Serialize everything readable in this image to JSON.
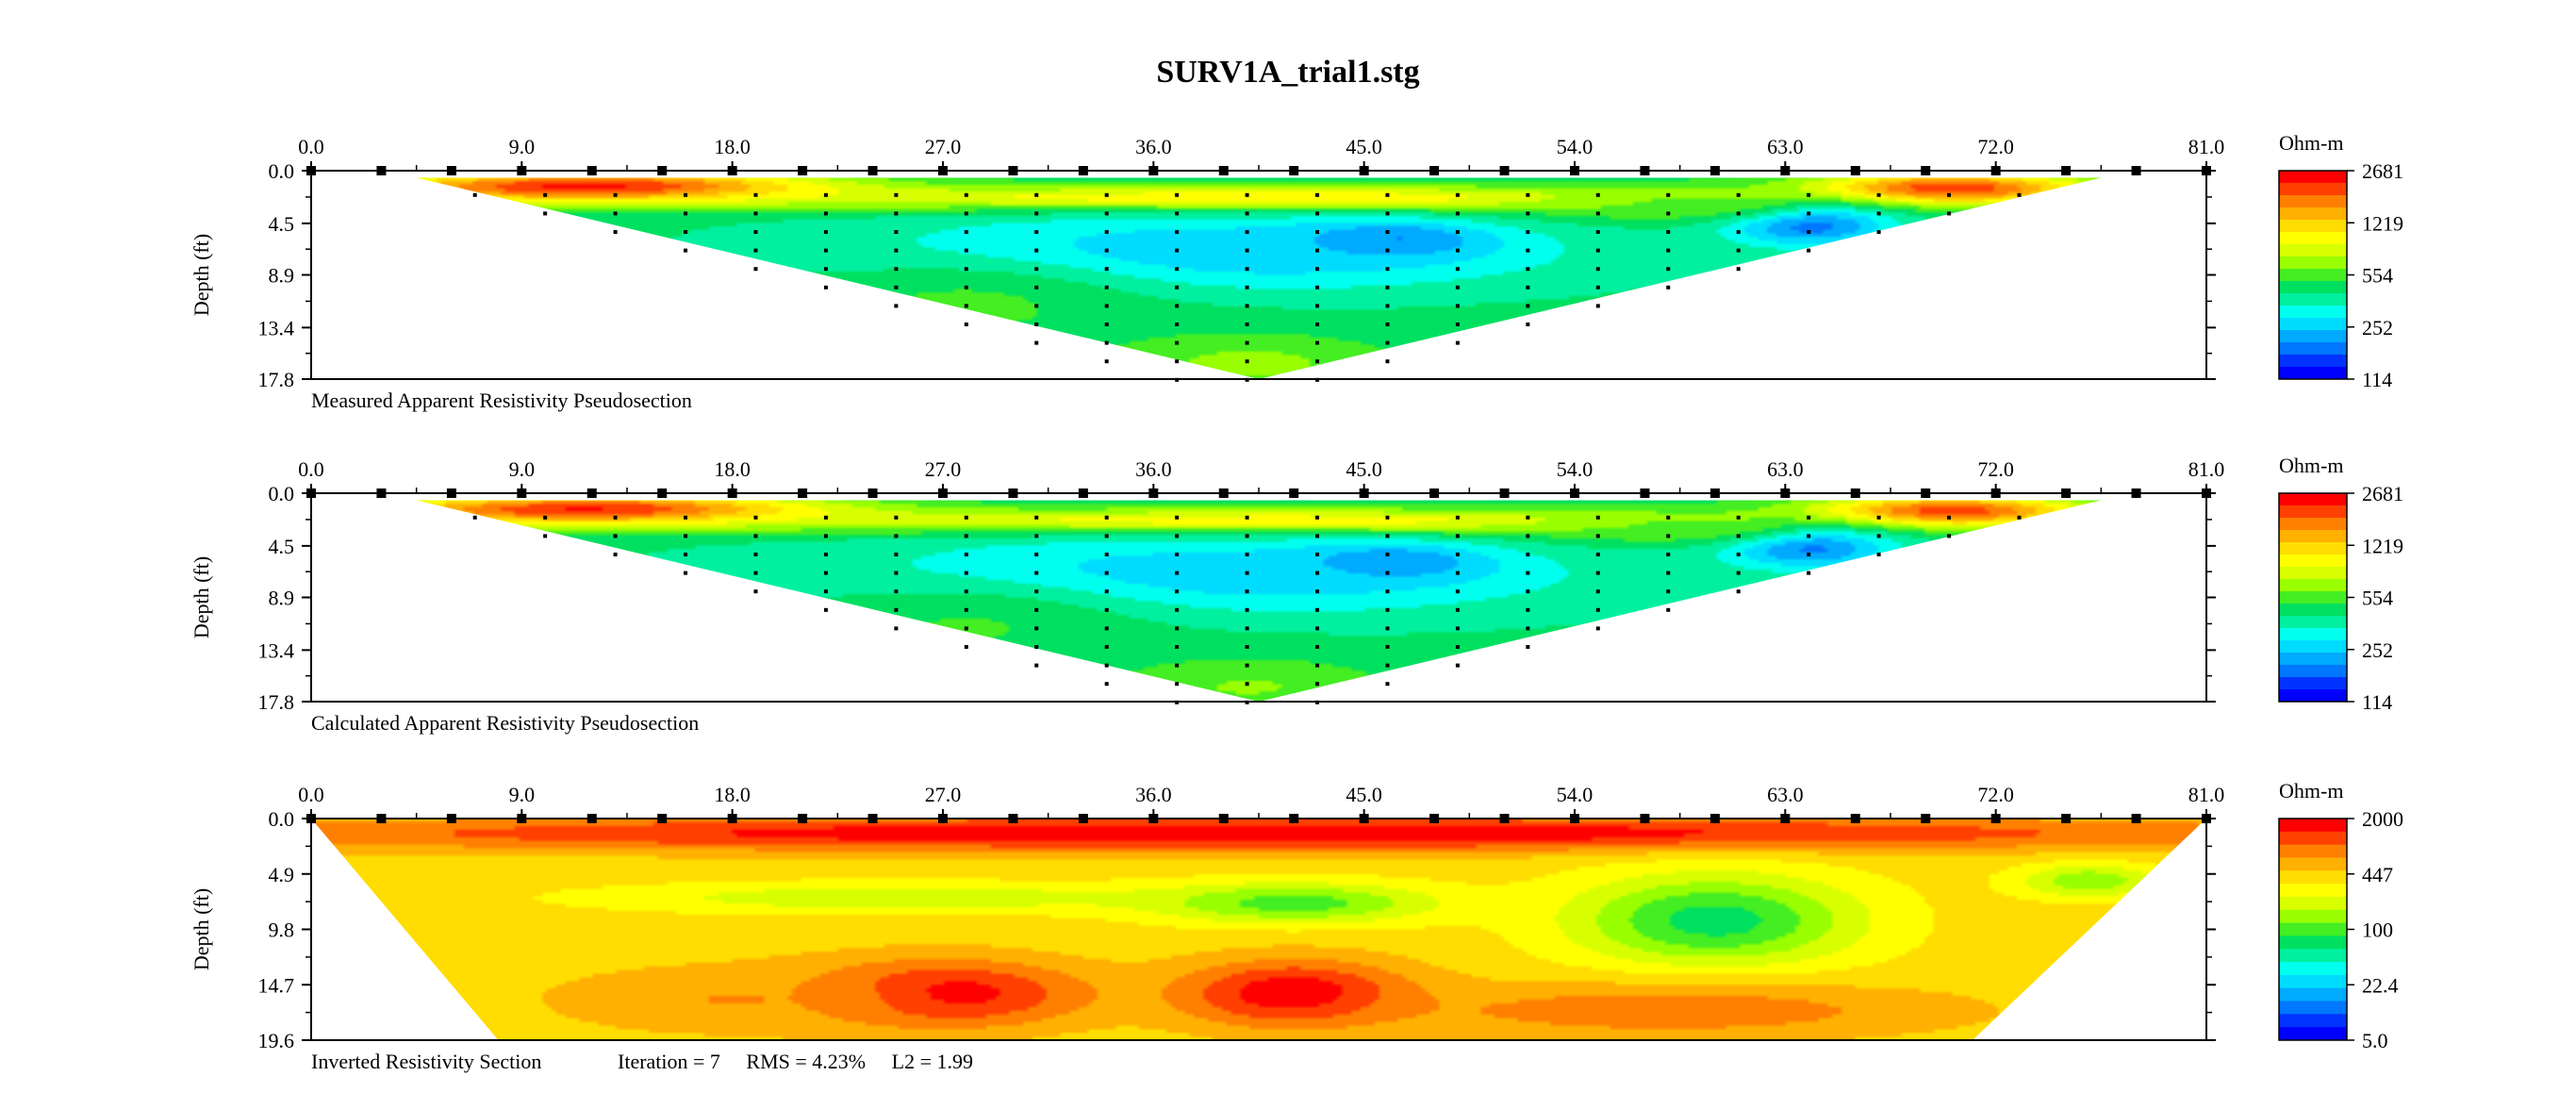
{
  "figure": {
    "title": "SURV1A_trial1.stg"
  },
  "colors": {
    "scale": [
      "#0000ff",
      "#0033ff",
      "#0077ff",
      "#00aaff",
      "#00dcff",
      "#00ffee",
      "#00f0a0",
      "#00e060",
      "#44ee22",
      "#99ff00",
      "#d8ff00",
      "#ffff00",
      "#ffdd00",
      "#ffb000",
      "#ff8000",
      "#ff4000",
      "#ff0000"
    ]
  },
  "chart_data": [
    {
      "type": "heatmap",
      "id": "measured",
      "caption": "Measured Apparent Resistivity Pseudosection",
      "ylabel": "Depth (ft)",
      "xlim": [
        0,
        81
      ],
      "ylim": [
        0,
        17.8
      ],
      "x_ticks": [
        "0.0",
        "9.0",
        "18.0",
        "27.0",
        "36.0",
        "45.0",
        "54.0",
        "63.0",
        "72.0",
        "81.0"
      ],
      "y_ticks": [
        "0.0",
        "4.5",
        "8.9",
        "13.4",
        "17.8"
      ],
      "legend_unit": "Ohm-m",
      "legend_ticks": [
        "2681",
        "1219",
        "554",
        "252",
        "114"
      ],
      "legend_range": [
        114,
        2681
      ],
      "electrodes_x": [
        0,
        3,
        6,
        9,
        12,
        15,
        18,
        21,
        24,
        27,
        30,
        33,
        36,
        39,
        42,
        45,
        48,
        51,
        54,
        57,
        60,
        63,
        66,
        69,
        72,
        75,
        78,
        81
      ],
      "datapoints": true,
      "section_outline": [
        [
          4.5,
          0.6
        ],
        [
          40.5,
          17.8
        ],
        [
          76.5,
          0.6
        ]
      ],
      "background": 450,
      "features": [
        {
          "x": 12,
          "z": 1.4,
          "sx": 10,
          "sz": 1.3,
          "value": 2500
        },
        {
          "x": 40,
          "z": 2.4,
          "sx": 22,
          "sz": 1.1,
          "value": 1300
        },
        {
          "x": 70,
          "z": 1.5,
          "sx": 6,
          "sz": 1.3,
          "value": 2200
        },
        {
          "x": 46,
          "z": 6.0,
          "sx": 4,
          "sz": 1.5,
          "value": 130
        },
        {
          "x": 64,
          "z": 4.6,
          "sx": 3.5,
          "sz": 1.8,
          "value": 170
        },
        {
          "x": 38,
          "z": 7.0,
          "sx": 16,
          "sz": 3.5,
          "value": 240
        },
        {
          "x": 58,
          "z": 2.8,
          "sx": 6,
          "sz": 1.5,
          "value": 600
        },
        {
          "x": 40,
          "z": 16.5,
          "sx": 6,
          "sz": 2.5,
          "value": 650
        },
        {
          "x": 28,
          "z": 11.5,
          "sx": 8,
          "sz": 4,
          "value": 520
        }
      ]
    },
    {
      "type": "heatmap",
      "id": "calculated",
      "caption": "Calculated Apparent Resistivity Pseudosection",
      "ylabel": "Depth (ft)",
      "xlim": [
        0,
        81
      ],
      "ylim": [
        0,
        17.8
      ],
      "x_ticks": [
        "0.0",
        "9.0",
        "18.0",
        "27.0",
        "36.0",
        "45.0",
        "54.0",
        "63.0",
        "72.0",
        "81.0"
      ],
      "y_ticks": [
        "0.0",
        "4.5",
        "8.9",
        "13.4",
        "17.8"
      ],
      "legend_unit": "Ohm-m",
      "legend_ticks": [
        "2681",
        "1219",
        "554",
        "252",
        "114"
      ],
      "legend_range": [
        114,
        2681
      ],
      "electrodes_x": [
        0,
        3,
        6,
        9,
        12,
        15,
        18,
        21,
        24,
        27,
        30,
        33,
        36,
        39,
        42,
        45,
        48,
        51,
        54,
        57,
        60,
        63,
        66,
        69,
        72,
        75,
        78,
        81
      ],
      "datapoints": true,
      "section_outline": [
        [
          4.5,
          0.6
        ],
        [
          40.5,
          17.8
        ],
        [
          76.5,
          0.6
        ]
      ],
      "background": 440,
      "features": [
        {
          "x": 12,
          "z": 1.4,
          "sx": 10,
          "sz": 1.3,
          "value": 2400
        },
        {
          "x": 40,
          "z": 2.4,
          "sx": 22,
          "sz": 1.1,
          "value": 1250
        },
        {
          "x": 70,
          "z": 1.5,
          "sx": 6,
          "sz": 1.3,
          "value": 2100
        },
        {
          "x": 46,
          "z": 6.0,
          "sx": 4,
          "sz": 1.5,
          "value": 140
        },
        {
          "x": 64,
          "z": 4.6,
          "sx": 3.5,
          "sz": 1.8,
          "value": 175
        },
        {
          "x": 38,
          "z": 7.0,
          "sx": 16,
          "sz": 3.5,
          "value": 245
        },
        {
          "x": 58,
          "z": 2.8,
          "sx": 6,
          "sz": 1.5,
          "value": 600
        },
        {
          "x": 40,
          "z": 16.5,
          "sx": 6,
          "sz": 2.5,
          "value": 620
        },
        {
          "x": 28,
          "z": 11.5,
          "sx": 8,
          "sz": 4,
          "value": 510
        }
      ]
    },
    {
      "type": "heatmap",
      "id": "inverted",
      "caption": "Inverted Resistivity Section",
      "caption_stats": "Iteration = 7     RMS = 4.23%     L2 = 1.99",
      "ylabel": "Depth (ft)",
      "xlim": [
        0,
        81
      ],
      "ylim": [
        0,
        19.6
      ],
      "x_ticks": [
        "0.0",
        "9.0",
        "18.0",
        "27.0",
        "36.0",
        "45.0",
        "54.0",
        "63.0",
        "72.0",
        "81.0"
      ],
      "y_ticks": [
        "0.0",
        "4.9",
        "9.8",
        "14.7",
        "19.6"
      ],
      "legend_unit": "Ohm-m",
      "legend_ticks": [
        "2000",
        "447",
        "100",
        "22.4",
        "5.0"
      ],
      "legend_range": [
        5,
        2000
      ],
      "electrodes_x": [
        0,
        3,
        6,
        9,
        12,
        15,
        18,
        21,
        24,
        27,
        30,
        33,
        36,
        39,
        42,
        45,
        48,
        51,
        54,
        57,
        60,
        63,
        66,
        69,
        72,
        75,
        78,
        81
      ],
      "datapoints": false,
      "section_outline": [
        [
          0,
          0
        ],
        [
          8,
          19.6
        ],
        [
          71,
          19.6
        ],
        [
          81,
          0
        ]
      ],
      "background": 400,
      "features": [
        {
          "x": 40,
          "z": 1.3,
          "sx": 45,
          "sz": 1.6,
          "value": 2000
        },
        {
          "x": 25,
          "z": 7.0,
          "sx": 12,
          "sz": 1.3,
          "value": 180
        },
        {
          "x": 42,
          "z": 7.5,
          "sx": 6,
          "sz": 1.8,
          "value": 100
        },
        {
          "x": 60,
          "z": 9.0,
          "sx": 6,
          "sz": 4,
          "value": 70
        },
        {
          "x": 76,
          "z": 5.5,
          "sx": 3,
          "sz": 1.5,
          "value": 130
        },
        {
          "x": 27,
          "z": 15.5,
          "sx": 6,
          "sz": 3,
          "value": 2000
        },
        {
          "x": 42,
          "z": 15.5,
          "sx": 5,
          "sz": 3,
          "value": 2000
        },
        {
          "x": 18,
          "z": 16.0,
          "sx": 8,
          "sz": 3,
          "value": 700
        },
        {
          "x": 58,
          "z": 17.0,
          "sx": 12,
          "sz": 2.5,
          "value": 900
        }
      ]
    }
  ]
}
